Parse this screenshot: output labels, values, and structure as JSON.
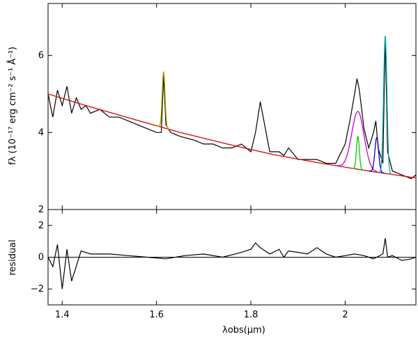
{
  "chart_data": {
    "type": "line",
    "xlabel": "λobs(μm)",
    "x_ticks": [
      1.4,
      1.6,
      1.8,
      2
    ],
    "x_tick_labels": [
      "1.4",
      "1.6",
      "1.8",
      "2"
    ],
    "xlim": [
      1.37,
      2.15
    ],
    "panels": [
      {
        "name": "flux",
        "ylabel": "fλ (10⁻¹⁷ erg cm⁻² s⁻¹ Å⁻¹)",
        "ylim": [
          2,
          7.35
        ],
        "y_ticks": [
          2,
          4,
          6
        ],
        "y_tick_labels": [
          "2",
          "4",
          "6"
        ],
        "series": [
          {
            "color": "#000000",
            "style": "spectrum",
            "x": [
              1.37,
              1.38,
              1.39,
              1.4,
              1.41,
              1.42,
              1.43,
              1.44,
              1.45,
              1.46,
              1.48,
              1.5,
              1.52,
              1.54,
              1.56,
              1.58,
              1.6,
              1.61,
              1.615,
              1.62,
              1.63,
              1.65,
              1.68,
              1.7,
              1.72,
              1.74,
              1.76,
              1.78,
              1.8,
              1.81,
              1.82,
              1.84,
              1.86,
              1.87,
              1.88,
              1.9,
              1.92,
              1.94,
              1.96,
              1.98,
              2.0,
              2.01,
              2.02,
              2.025,
              2.03,
              2.04,
              2.05,
              2.06,
              2.065,
              2.07,
              2.08,
              2.085,
              2.09,
              2.1,
              2.12,
              2.14,
              2.15
            ],
            "y": [
              5.0,
              4.4,
              5.1,
              4.7,
              5.2,
              4.5,
              4.9,
              4.6,
              4.7,
              4.5,
              4.6,
              4.4,
              4.4,
              4.3,
              4.2,
              4.1,
              4.0,
              4.0,
              5.5,
              4.2,
              4.0,
              3.9,
              3.8,
              3.7,
              3.7,
              3.6,
              3.6,
              3.7,
              3.5,
              4.0,
              4.8,
              3.5,
              3.5,
              3.4,
              3.6,
              3.3,
              3.3,
              3.3,
              3.2,
              3.2,
              3.7,
              4.3,
              5.0,
              5.4,
              5.1,
              4.1,
              3.6,
              4.0,
              4.3,
              3.6,
              3.2,
              6.5,
              3.5,
              3.0,
              2.9,
              2.8,
              2.9
            ]
          },
          {
            "color": "#dd0000",
            "style": "continuum",
            "x": [
              1.37,
              1.45,
              1.55,
              1.65,
              1.75,
              1.85,
              1.95,
              2.05,
              2.15
            ],
            "y": [
              5.0,
              4.7,
              4.35,
              4.0,
              3.7,
              3.42,
              3.2,
              3.0,
              2.82
            ]
          },
          {
            "color": "#b8a000",
            "style": "gaussian",
            "center": 1.615,
            "sigma": 0.003,
            "amplitude": 1.45
          },
          {
            "color": "#cc00cc",
            "style": "gaussian",
            "center": 2.027,
            "sigma": 0.013,
            "amplitude": 1.5
          },
          {
            "color": "#00cc00",
            "style": "gaussian",
            "center": 2.027,
            "sigma": 0.003,
            "amplitude": 0.85
          },
          {
            "color": "#0000bb",
            "style": "gaussian",
            "center": 2.067,
            "sigma": 0.004,
            "amplitude": 0.9
          },
          {
            "color": "#00aaaa",
            "style": "gaussian",
            "center": 2.085,
            "sigma": 0.0035,
            "amplitude": 3.55
          }
        ]
      },
      {
        "name": "residual",
        "ylabel": "residual",
        "ylim": [
          -3.0,
          3.0
        ],
        "y_ticks": [
          -2,
          0,
          2
        ],
        "y_tick_labels": [
          "−2",
          "0",
          "2"
        ],
        "zero_line": true,
        "series": [
          {
            "color": "#000000",
            "style": "spectrum",
            "x": [
              1.37,
              1.38,
              1.39,
              1.4,
              1.41,
              1.42,
              1.44,
              1.46,
              1.5,
              1.54,
              1.58,
              1.62,
              1.66,
              1.7,
              1.74,
              1.78,
              1.8,
              1.81,
              1.82,
              1.84,
              1.86,
              1.87,
              1.88,
              1.9,
              1.92,
              1.94,
              1.96,
              1.98,
              2.0,
              2.02,
              2.04,
              2.06,
              2.08,
              2.085,
              2.09,
              2.1,
              2.12,
              2.14,
              2.15
            ],
            "y": [
              0.0,
              -0.6,
              0.8,
              -2.0,
              0.5,
              -1.5,
              0.4,
              0.2,
              0.2,
              0.1,
              0.0,
              -0.1,
              0.1,
              0.2,
              0.0,
              0.3,
              0.5,
              0.9,
              0.6,
              0.2,
              0.5,
              0.0,
              0.4,
              0.3,
              0.2,
              0.6,
              0.2,
              0.0,
              0.1,
              0.2,
              0.1,
              -0.1,
              0.2,
              1.2,
              0.0,
              0.1,
              -0.2,
              -0.1,
              0.0
            ]
          }
        ]
      }
    ]
  }
}
